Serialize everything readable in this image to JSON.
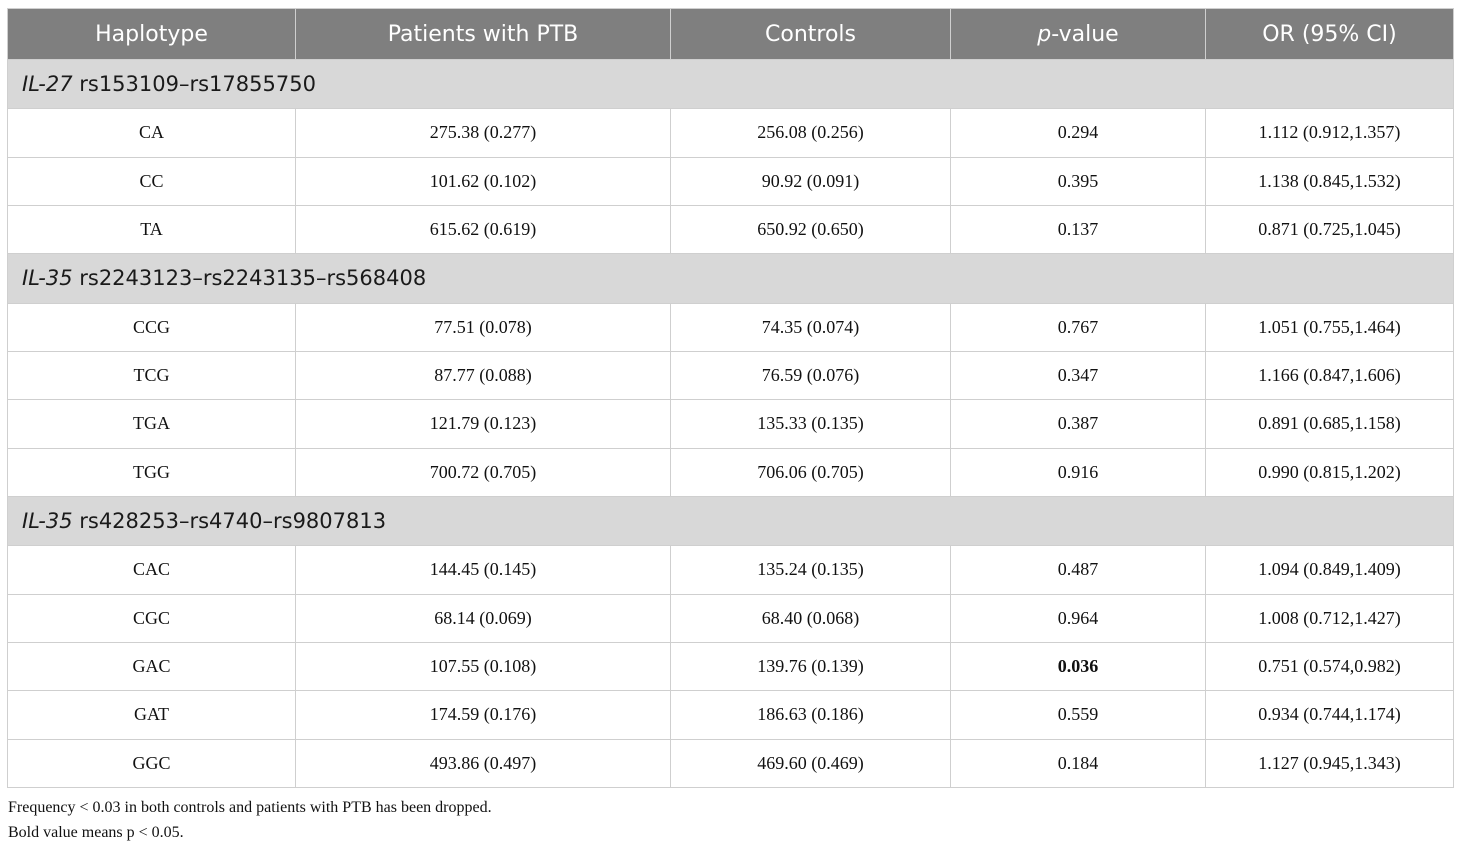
{
  "headers": [
    "Haplotype",
    "Patients with PTB",
    "Controls",
    "p",
    "-value",
    "OR (95% CI)"
  ],
  "groups": [
    {
      "gene": "IL-27",
      "snps": " rs153109–rs17855750",
      "rows": [
        {
          "haplotype": "CA",
          "patients": "275.38 (0.277)",
          "controls": "256.08 (0.256)",
          "p": "0.294",
          "or": "1.112 (0.912,1.357)"
        },
        {
          "haplotype": "CC",
          "patients": "101.62 (0.102)",
          "controls": "90.92 (0.091)",
          "p": "0.395",
          "or": "1.138 (0.845,1.532)"
        },
        {
          "haplotype": "TA",
          "patients": "615.62 (0.619)",
          "controls": "650.92 (0.650)",
          "p": "0.137",
          "or": "0.871 (0.725,1.045)"
        }
      ]
    },
    {
      "gene": "IL-35",
      "snps": " rs2243123–rs2243135–rs568408",
      "rows": [
        {
          "haplotype": "CCG",
          "patients": "77.51 (0.078)",
          "controls": "74.35 (0.074)",
          "p": "0.767",
          "or": "1.051 (0.755,1.464)"
        },
        {
          "haplotype": "TCG",
          "patients": "87.77 (0.088)",
          "controls": "76.59 (0.076)",
          "p": "0.347",
          "or": "1.166 (0.847,1.606)"
        },
        {
          "haplotype": "TGA",
          "patients": "121.79 (0.123)",
          "controls": "135.33 (0.135)",
          "p": "0.387",
          "or": "0.891 (0.685,1.158)"
        },
        {
          "haplotype": "TGG",
          "patients": "700.72 (0.705)",
          "controls": "706.06 (0.705)",
          "p": "0.916",
          "or": "0.990 (0.815,1.202)"
        }
      ]
    },
    {
      "gene": "IL-35",
      "snps": " rs428253–rs4740–rs9807813",
      "rows": [
        {
          "haplotype": "CAC",
          "patients": "144.45 (0.145)",
          "controls": "135.24 (0.135)",
          "p": "0.487",
          "or": "1.094 (0.849,1.409)"
        },
        {
          "haplotype": "CGC",
          "patients": "68.14 (0.069)",
          "controls": "68.40 (0.068)",
          "p": "0.964",
          "or": "1.008 (0.712,1.427)"
        },
        {
          "haplotype": "GAC",
          "patients": "107.55 (0.108)",
          "controls": "139.76 (0.139)",
          "p": "0.036",
          "or": "0.751 (0.574,0.982)"
        },
        {
          "haplotype": "GAT",
          "patients": "174.59 (0.176)",
          "controls": "186.63 (0.186)",
          "p": "0.559",
          "or": "0.934 (0.744,1.174)"
        },
        {
          "haplotype": "GGC",
          "patients": "493.86 (0.497)",
          "controls": "469.60 (0.469)",
          "p": "0.184",
          "or": "1.127 (0.945,1.343)"
        }
      ]
    }
  ],
  "footnotes": [
    "Frequency < 0.03 in both controls and patients with PTB has been dropped.",
    "Bold value means p < 0.05."
  ]
}
